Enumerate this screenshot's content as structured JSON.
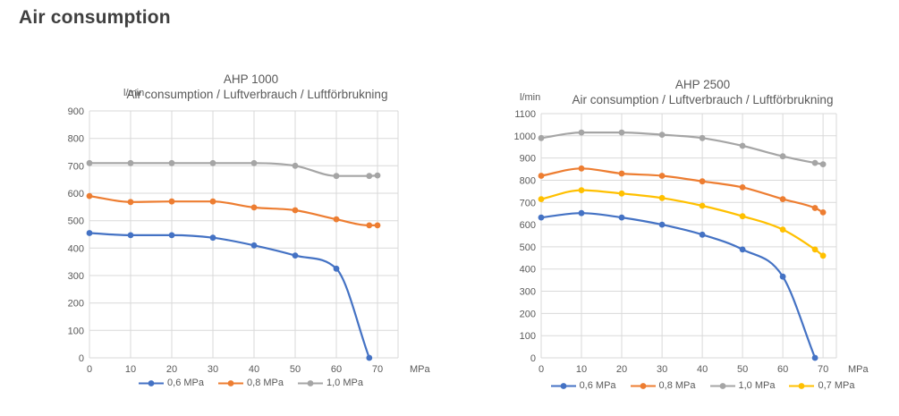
{
  "page": {
    "title": "Air consumption"
  },
  "colors": {
    "page_title": "#3F3F3F",
    "chart_text": "#595959",
    "grid": "#D9D9D9",
    "series_blue": "#4472C4",
    "series_orange": "#ED7D31",
    "series_gray": "#A5A5A5",
    "series_yellow": "#FFC000"
  },
  "chart_data": [
    {
      "type": "line",
      "title": "AHP 1000",
      "subtitle": "Air consumption / Luftverbrauch / Luftförbrukning",
      "y_unit": "l/min",
      "x_unit": "MPa",
      "ylim": [
        0,
        900
      ],
      "ytick_step": 100,
      "xlim": [
        0,
        70
      ],
      "xticks": [
        0,
        10,
        20,
        30,
        40,
        50,
        60,
        70
      ],
      "grid": true,
      "smooth": true,
      "marker": "circle",
      "legend_position": "bottom",
      "series": [
        {
          "name": "0,6 MPa",
          "color": "#4472C4",
          "points": [
            [
              0,
              455
            ],
            [
              10,
              447
            ],
            [
              20,
              447
            ],
            [
              30,
              438
            ],
            [
              40,
              410
            ],
            [
              50,
              373
            ],
            [
              60,
              325
            ],
            [
              68,
              0
            ]
          ]
        },
        {
          "name": "0,8 MPa",
          "color": "#ED7D31",
          "points": [
            [
              0,
              590
            ],
            [
              10,
              568
            ],
            [
              20,
              570
            ],
            [
              30,
              570
            ],
            [
              40,
              548
            ],
            [
              50,
              538
            ],
            [
              60,
              505
            ],
            [
              68,
              483
            ],
            [
              70,
              483
            ]
          ]
        },
        {
          "name": "1,0 MPa",
          "color": "#A5A5A5",
          "points": [
            [
              0,
              710
            ],
            [
              10,
              710
            ],
            [
              20,
              710
            ],
            [
              30,
              710
            ],
            [
              40,
              710
            ],
            [
              50,
              700
            ],
            [
              60,
              663
            ],
            [
              68,
              663
            ],
            [
              70,
              665
            ]
          ]
        }
      ]
    },
    {
      "type": "line",
      "title": "AHP 2500",
      "subtitle": "Air consumption / Luftverbrauch / Luftförbrukning",
      "y_unit": "l/min",
      "x_unit": "MPa",
      "ylim": [
        0,
        1100
      ],
      "ytick_step": 100,
      "xlim": [
        0,
        70
      ],
      "xticks": [
        0,
        10,
        20,
        30,
        40,
        50,
        60,
        70
      ],
      "grid": true,
      "smooth": true,
      "marker": "circle",
      "legend_position": "bottom",
      "series": [
        {
          "name": "0,6 MPa",
          "color": "#4472C4",
          "points": [
            [
              0,
              632
            ],
            [
              10,
              652
            ],
            [
              20,
              632
            ],
            [
              30,
              600
            ],
            [
              40,
              555
            ],
            [
              50,
              488
            ],
            [
              60,
              366
            ],
            [
              68,
              0
            ]
          ]
        },
        {
          "name": "0,8 MPa",
          "color": "#ED7D31",
          "points": [
            [
              0,
              820
            ],
            [
              10,
              853
            ],
            [
              20,
              830
            ],
            [
              30,
              820
            ],
            [
              40,
              795
            ],
            [
              50,
              768
            ],
            [
              60,
              715
            ],
            [
              68,
              675
            ],
            [
              70,
              655
            ]
          ]
        },
        {
          "name": "1,0 MPa",
          "color": "#A5A5A5",
          "points": [
            [
              0,
              990
            ],
            [
              10,
              1015
            ],
            [
              20,
              1015
            ],
            [
              30,
              1005
            ],
            [
              40,
              990
            ],
            [
              50,
              955
            ],
            [
              60,
              908
            ],
            [
              68,
              878
            ],
            [
              70,
              872
            ]
          ]
        },
        {
          "name": "0,7 MPa",
          "color": "#FFC000",
          "points": [
            [
              0,
              715
            ],
            [
              10,
              755
            ],
            [
              20,
              740
            ],
            [
              30,
              720
            ],
            [
              40,
              685
            ],
            [
              50,
              638
            ],
            [
              60,
              578
            ],
            [
              68,
              488
            ],
            [
              70,
              460
            ]
          ]
        }
      ]
    }
  ]
}
